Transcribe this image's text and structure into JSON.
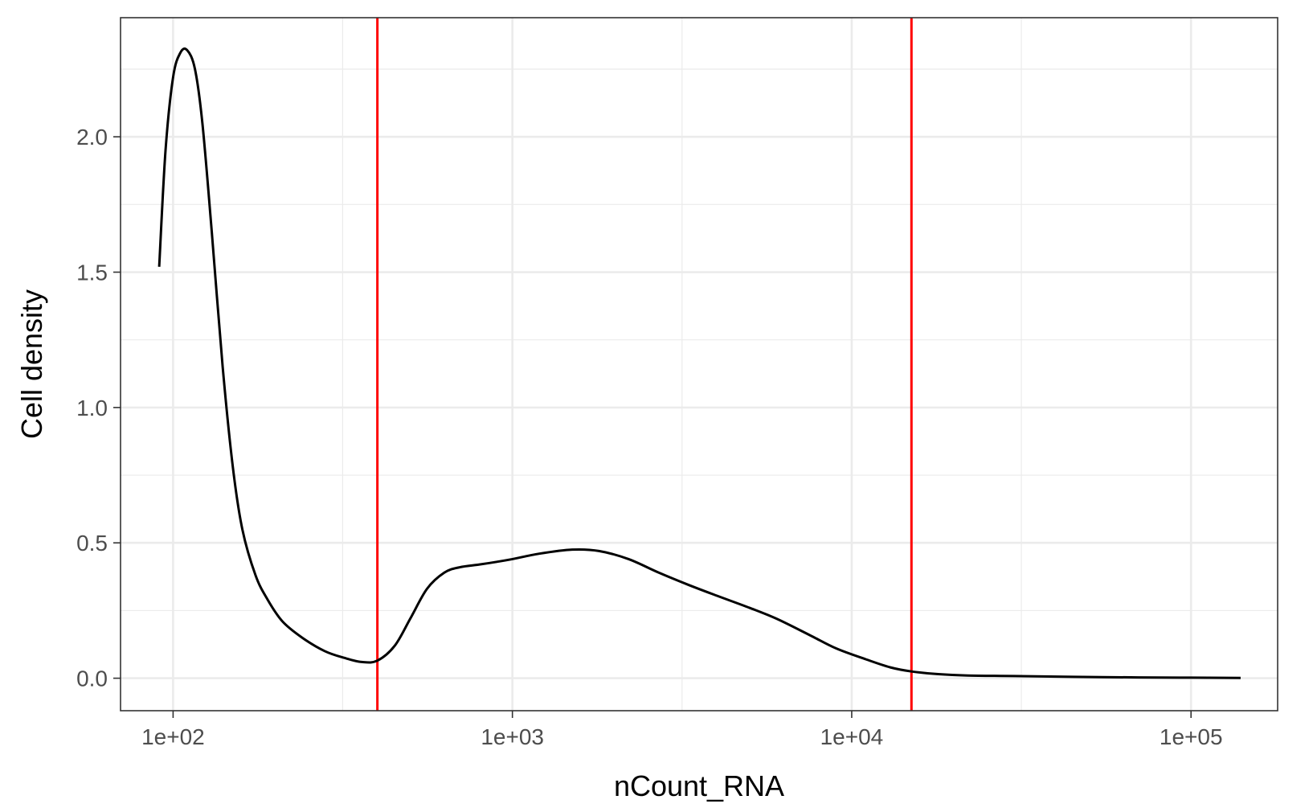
{
  "chart_data": {
    "type": "line",
    "title": "",
    "xlabel": "nCount_RNA",
    "ylabel": "Cell density",
    "x_scale": "log10",
    "xlim": [
      70,
      180000
    ],
    "ylim": [
      -0.12,
      2.44
    ],
    "x_ticks": [
      {
        "value": 100,
        "label": "1e+02"
      },
      {
        "value": 1000,
        "label": "1e+03"
      },
      {
        "value": 10000,
        "label": "1e+04"
      },
      {
        "value": 100000,
        "label": "1e+05"
      }
    ],
    "x_minor_ticks": [
      316,
      3162,
      31623
    ],
    "y_ticks": [
      {
        "value": 0.0,
        "label": "0.0"
      },
      {
        "value": 0.5,
        "label": "0.5"
      },
      {
        "value": 1.0,
        "label": "1.0"
      },
      {
        "value": 1.5,
        "label": "1.5"
      },
      {
        "value": 2.0,
        "label": "2.0"
      }
    ],
    "y_minor_ticks": [
      0.25,
      0.75,
      1.25,
      1.75,
      2.25
    ],
    "grid": true,
    "series": [
      {
        "color": "#000000",
        "x": [
          91,
          95,
          100,
          105,
          110,
          116,
          122,
          130,
          140,
          150,
          160,
          175,
          190,
          210,
          240,
          280,
          320,
          360,
          400,
          450,
          500,
          560,
          630,
          700,
          800,
          900,
          1000,
          1200,
          1500,
          1800,
          2200,
          2700,
          3300,
          4000,
          5000,
          6000,
          7500,
          9000,
          11000,
          13000,
          15000,
          18000,
          22000,
          30000,
          45000,
          70000,
          100000,
          140000
        ],
        "y": [
          1.52,
          1.95,
          2.22,
          2.31,
          2.32,
          2.25,
          2.05,
          1.65,
          1.15,
          0.78,
          0.55,
          0.38,
          0.29,
          0.21,
          0.15,
          0.1,
          0.075,
          0.06,
          0.065,
          0.12,
          0.22,
          0.33,
          0.39,
          0.41,
          0.42,
          0.43,
          0.44,
          0.46,
          0.475,
          0.47,
          0.44,
          0.39,
          0.345,
          0.305,
          0.26,
          0.22,
          0.16,
          0.11,
          0.07,
          0.04,
          0.025,
          0.015,
          0.01,
          0.008,
          0.005,
          0.003,
          0.002,
          0.001
        ]
      }
    ],
    "vlines": [
      {
        "x": 400,
        "color": "#ff0000"
      },
      {
        "x": 15000,
        "color": "#ff0000"
      }
    ]
  }
}
